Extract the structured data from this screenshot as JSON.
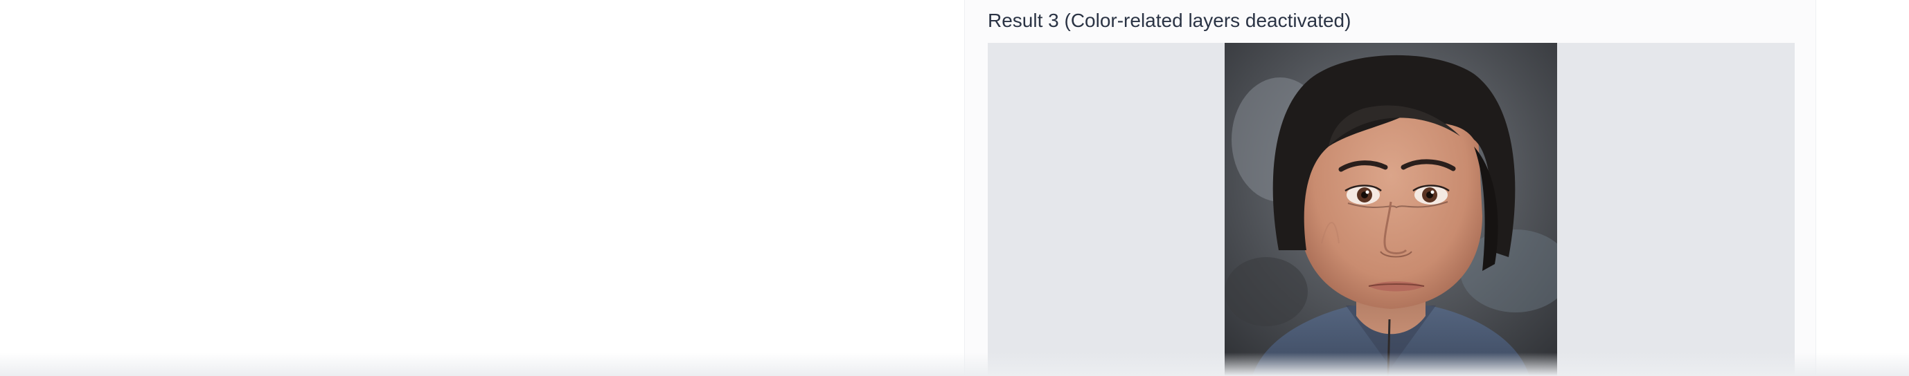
{
  "result": {
    "label": "Result 3 (Color-related layers deactivated)",
    "image_alt": "Result 3 (Color-related layers deactivated)"
  },
  "colors": {
    "panel_background": "#fbfbfc",
    "frame_background": "#e5e7eb",
    "label_text": "#2b3445"
  }
}
